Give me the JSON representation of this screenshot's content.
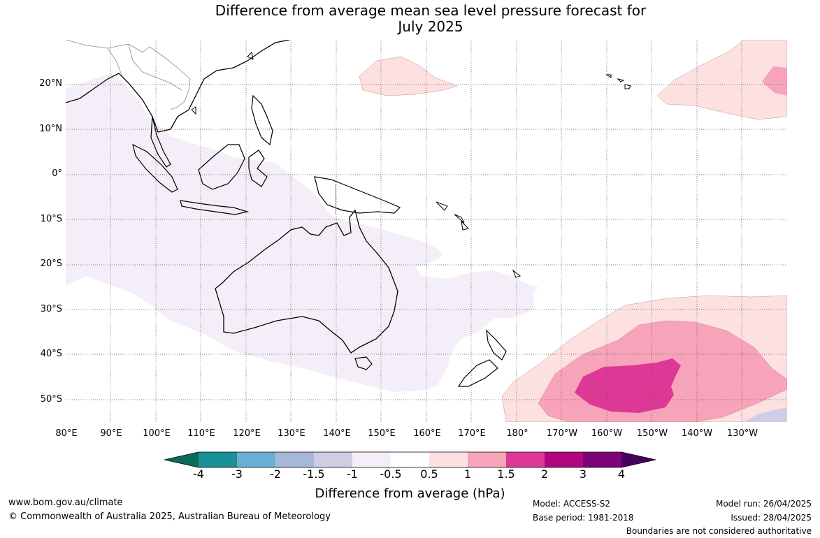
{
  "title": {
    "line1": "Difference from average mean sea level pressure forecast for",
    "line2": "July 2025"
  },
  "map": {
    "lat_labels": [
      "20°N",
      "10°N",
      "0°",
      "10°S",
      "20°S",
      "30°S",
      "40°S",
      "50°S"
    ],
    "lon_labels": [
      "80°E",
      "90°E",
      "100°E",
      "110°E",
      "120°E",
      "130°E",
      "140°E",
      "150°E",
      "160°E",
      "170°E",
      "180°",
      "170°W",
      "160°W",
      "150°W",
      "140°W",
      "130°W"
    ],
    "colors": {
      "coast": "#000000",
      "border": "#888888",
      "grid": "#555555"
    }
  },
  "colorbar": {
    "label": "Difference from average (hPa)",
    "ticks": [
      "-4",
      "-3",
      "-2",
      "-1.5",
      "-1",
      "-0.5",
      "0.5",
      "1",
      "1.5",
      "2",
      "3",
      "4"
    ],
    "colors": [
      "#0a6b5c",
      "#1a9097",
      "#6aaed3",
      "#a6b8d8",
      "#cfcde3",
      "#f3eef7",
      "#ffffff",
      "#fde0e0",
      "#f7a3b9",
      "#de3896",
      "#b1077e",
      "#7e0278",
      "#48005e"
    ]
  },
  "footer": {
    "website": "www.bom.gov.au/climate",
    "copyright": "© Commonwealth of Australia 2025, Australian Bureau of Meteorology",
    "model": "Model: ACCESS-S2",
    "base_period": "Base period: 1981-2018",
    "model_run": "Model run: 26/04/2025",
    "issued": "Issued: 28/04/2025",
    "disclaimer": "Boundaries are not considered authoritative"
  }
}
